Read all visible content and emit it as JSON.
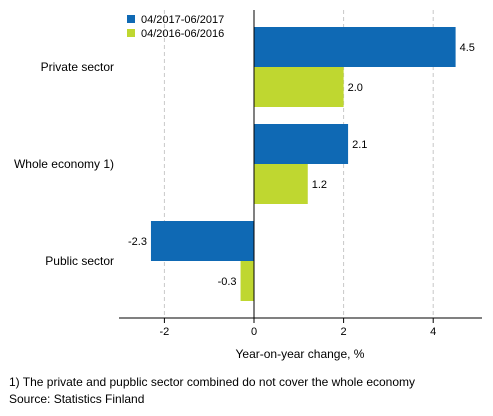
{
  "chart_data": {
    "type": "bar",
    "orientation": "horizontal",
    "categories": [
      "Private sector",
      "Whole economy 1)",
      "Public sector"
    ],
    "series": [
      {
        "name": "04/2017-06/2017",
        "color": "#0f69b4",
        "values": [
          4.5,
          2.1,
          -2.3
        ],
        "labels": [
          "4.5",
          "2.1",
          "-2.3"
        ]
      },
      {
        "name": "04/2016-06/2016",
        "color": "#bfd730",
        "values": [
          2.0,
          1.2,
          -0.3
        ],
        "labels": [
          "2.0",
          "1.2",
          "-0.3"
        ]
      }
    ],
    "xlabel": "Year-on-year change, %",
    "xlim": [
      -3,
      5
    ],
    "xticks": [
      -2,
      0,
      2,
      4
    ],
    "xtick_labels": [
      "-2",
      "0",
      "2",
      "4"
    ],
    "grid": "vertical dashed",
    "legend_position": "top-left"
  },
  "footnotes": {
    "note": "1) The private and pupblic sector combined do not cover the whole economy",
    "source": "Source: Statistics Finland"
  }
}
